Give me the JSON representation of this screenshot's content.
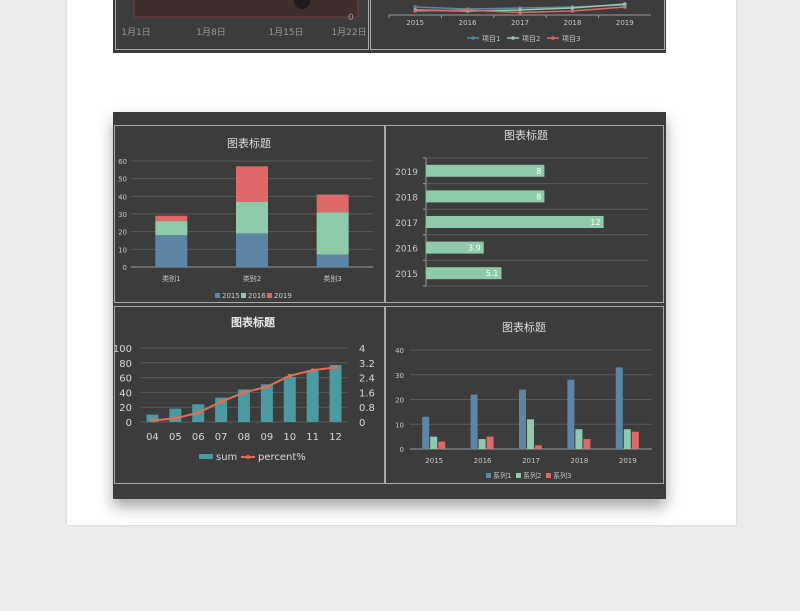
{
  "top_left_axis": {
    "ticks": [
      "1月1日",
      "1月8日",
      "1月15日",
      "1月22日"
    ],
    "right_value": "0"
  },
  "chart_data": [
    {
      "type": "line",
      "title": "",
      "x": [
        "2015",
        "2016",
        "2017",
        "2018",
        "2019"
      ],
      "series": [
        {
          "name": "项目1",
          "values": [
            6,
            4,
            5,
            6,
            8
          ]
        },
        {
          "name": "项目2",
          "values": [
            3,
            2,
            3,
            5,
            9
          ]
        },
        {
          "name": "项目3",
          "values": [
            2,
            3,
            0.5,
            2,
            6
          ]
        }
      ],
      "legend": "bottom",
      "partially_visible": true,
      "colors": {
        "项目1": "#5b86a8",
        "项目2": "#8fcbab",
        "项目3": "#e06767"
      }
    },
    {
      "type": "bar",
      "stacked": true,
      "title": "图表标题",
      "categories": [
        "类别1",
        "类别2",
        "类别3"
      ],
      "series": [
        {
          "name": "2015",
          "values": [
            18,
            19,
            7
          ]
        },
        {
          "name": "2016",
          "values": [
            8,
            18,
            24
          ]
        },
        {
          "name": "2019",
          "values": [
            3,
            20,
            10
          ]
        }
      ],
      "ylim": [
        0,
        60
      ],
      "yticks": [
        "0",
        "10",
        "20",
        "30",
        "40",
        "50",
        "60"
      ],
      "legend": "bottom",
      "grid": true,
      "colors": {
        "2015": "#5b86a8",
        "2016": "#8fcbab",
        "2019": "#e06767"
      }
    },
    {
      "type": "bar",
      "orientation": "horizontal",
      "title": "图表标题",
      "categories": [
        "2019",
        "2018",
        "2017",
        "2016",
        "2015"
      ],
      "values": [
        8,
        8,
        12,
        3.9,
        5.1
      ],
      "labels": [
        "8",
        "8",
        "12",
        "3.9",
        "5.1"
      ],
      "xlim": [
        0,
        15
      ],
      "color": "#8fcbab"
    },
    {
      "type": "bar",
      "combo": true,
      "title": "图表标题",
      "categories": [
        "04",
        "05",
        "06",
        "07",
        "08",
        "09",
        "10",
        "11",
        "12"
      ],
      "series": [
        {
          "name": "sum",
          "values": [
            10,
            18,
            24,
            33,
            44,
            51,
            61,
            70,
            77
          ],
          "axis": "left"
        },
        {
          "name": "percent%",
          "values": [
            0.08,
            0.2,
            0.5,
            1.1,
            1.6,
            1.9,
            2.5,
            2.8,
            2.95
          ],
          "axis": "right",
          "type": "line"
        }
      ],
      "ylim": [
        0,
        100
      ],
      "yticks": [
        "0",
        "20",
        "40",
        "60",
        "80",
        "100"
      ],
      "y2lim": [
        0,
        4
      ],
      "y2ticks": [
        "0",
        "0.8",
        "1.6",
        "2.4",
        "3.2",
        "4"
      ],
      "legend": "bottom",
      "colors": {
        "sum": "#4a9aa3",
        "percent%": "#e56d52"
      }
    },
    {
      "type": "bar",
      "title": "图表标题",
      "categories": [
        "2015",
        "2016",
        "2017",
        "2018",
        "2019"
      ],
      "series": [
        {
          "name": "系列1",
          "values": [
            13,
            22,
            24,
            28,
            33
          ]
        },
        {
          "name": "系列2",
          "values": [
            5,
            4,
            12,
            8,
            8
          ]
        },
        {
          "name": "系列3",
          "values": [
            3,
            5,
            1.5,
            4,
            7
          ]
        }
      ],
      "ylim": [
        0,
        40
      ],
      "yticks": [
        "0",
        "10",
        "20",
        "30",
        "40"
      ],
      "legend": "bottom",
      "grid": true,
      "colors": {
        "系列1": "#5b86a8",
        "系列2": "#8fcbab",
        "系列3": "#e06767"
      }
    }
  ]
}
